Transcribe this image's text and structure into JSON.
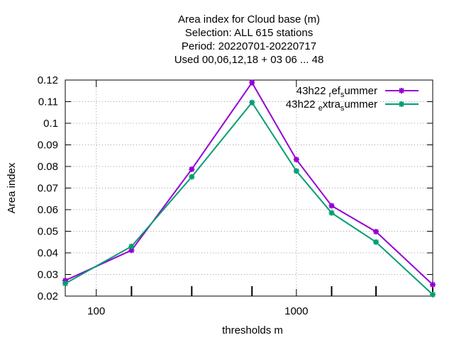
{
  "chart_data": {
    "type": "line",
    "title_lines": [
      "Area index  for Cloud base (m)",
      "Selection: ALL    615 stations",
      "Period: 20220701-20220717",
      "Used  00,06,12,18  + 03 06 ... 48"
    ],
    "xlabel": "thresholds m",
    "ylabel": "Area index",
    "x_scale": "log",
    "xlim": [
      70,
      4800
    ],
    "ylim": [
      0.02,
      0.12
    ],
    "x_tick_labels": [
      {
        "value": 100,
        "label": "100"
      },
      {
        "value": 1000,
        "label": "1000"
      }
    ],
    "x_minor_ticks": [
      150,
      300,
      600,
      1500,
      2500,
      4800
    ],
    "y_ticks": [
      {
        "value": 0.02,
        "label": "0.02"
      },
      {
        "value": 0.03,
        "label": "0.03"
      },
      {
        "value": 0.04,
        "label": "0.04"
      },
      {
        "value": 0.05,
        "label": "0.05"
      },
      {
        "value": 0.06,
        "label": "0.06"
      },
      {
        "value": 0.07,
        "label": "0.07"
      },
      {
        "value": 0.08,
        "label": "0.08"
      },
      {
        "value": 0.09,
        "label": "0.09"
      },
      {
        "value": 0.1,
        "label": "0.1"
      },
      {
        "value": 0.11,
        "label": "0.11"
      },
      {
        "value": 0.12,
        "label": "0.12"
      }
    ],
    "grid": true,
    "legend_position": "top-right",
    "series": [
      {
        "name_parts": [
          "43h22",
          "r",
          "ef",
          "s",
          "ummer"
        ],
        "color": "#9400d3",
        "x": [
          70,
          150,
          300,
          600,
          1000,
          1500,
          2500,
          4800
        ],
        "y": [
          0.0272,
          0.0412,
          0.0787,
          0.1188,
          0.0832,
          0.0618,
          0.0498,
          0.0253
        ]
      },
      {
        "name_parts": [
          "43h22",
          "e",
          "xtra",
          "s",
          "ummer"
        ],
        "color": "#009e73",
        "x": [
          70,
          150,
          300,
          600,
          1000,
          1500,
          2500,
          4800
        ],
        "y": [
          0.0258,
          0.043,
          0.0752,
          0.1096,
          0.0779,
          0.0585,
          0.045,
          0.0207
        ]
      }
    ]
  }
}
